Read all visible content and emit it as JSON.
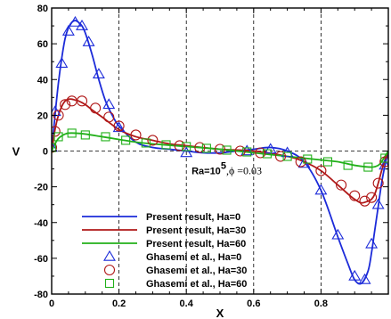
{
  "chart_data": {
    "type": "line",
    "xlabel": "X",
    "ylabel": "V",
    "xlim": [
      0,
      1
    ],
    "ylim": [
      -80,
      80
    ],
    "x_ticks": [
      {
        "value": 0,
        "label": "0"
      },
      {
        "value": 0.2,
        "label": "0.2"
      },
      {
        "value": 0.4,
        "label": "0.4"
      },
      {
        "value": 0.6,
        "label": "0.6"
      },
      {
        "value": 0.8,
        "label": "0.8"
      }
    ],
    "y_ticks": [
      {
        "value": 80,
        "label": "80"
      },
      {
        "value": 60,
        "label": "60"
      },
      {
        "value": 40,
        "label": "40"
      },
      {
        "value": 20,
        "label": "20"
      },
      {
        "value": 0,
        "label": "0"
      },
      {
        "value": -20,
        "label": "-20"
      },
      {
        "value": -40,
        "label": "-40"
      },
      {
        "value": -60,
        "label": "-60"
      },
      {
        "value": -80,
        "label": "-80"
      }
    ],
    "annotation": {
      "ra_prefix": "Ra=10",
      "ra_exponent": "5",
      "phi_text": ",ϕ =0.03",
      "x": 0.52,
      "y": -13
    },
    "legend_position": "lower-left",
    "series": [
      {
        "name": "Present result, Ha=0",
        "style": "line",
        "color": "#1c2bd9",
        "x": [
          0,
          0.01,
          0.02,
          0.03,
          0.04,
          0.05,
          0.06,
          0.07,
          0.08,
          0.09,
          0.1,
          0.12,
          0.14,
          0.16,
          0.18,
          0.2,
          0.25,
          0.3,
          0.35,
          0.4,
          0.45,
          0.5,
          0.55,
          0.6,
          0.65,
          0.7,
          0.75,
          0.8,
          0.85,
          0.88,
          0.9,
          0.92,
          0.94,
          0.95,
          0.96,
          0.97,
          0.98,
          0.99,
          1.0
        ],
        "y": [
          0,
          20,
          38,
          52,
          63,
          69,
          72,
          73,
          72,
          70,
          66,
          54,
          40,
          28,
          20,
          14,
          5,
          2,
          1,
          0,
          -1,
          -1,
          0,
          1,
          2,
          0,
          -6,
          -22,
          -48,
          -63,
          -72,
          -74,
          -67,
          -57,
          -44,
          -31,
          -18,
          -8,
          0
        ]
      },
      {
        "name": "Present result, Ha=30",
        "style": "line",
        "color": "#b01818",
        "x": [
          0,
          0.01,
          0.02,
          0.03,
          0.04,
          0.05,
          0.06,
          0.07,
          0.08,
          0.1,
          0.12,
          0.15,
          0.2,
          0.25,
          0.3,
          0.35,
          0.4,
          0.5,
          0.6,
          0.7,
          0.75,
          0.8,
          0.85,
          0.88,
          0.9,
          0.92,
          0.94,
          0.95,
          0.96,
          0.97,
          0.98,
          0.99,
          1.0
        ],
        "y": [
          0,
          12,
          20,
          25,
          28,
          29,
          29,
          28.5,
          28,
          26,
          23,
          19,
          12,
          8,
          6,
          4,
          3,
          1,
          0,
          -3,
          -6,
          -11,
          -19,
          -24,
          -27,
          -29,
          -28,
          -27,
          -24,
          -18,
          -11,
          -5,
          0
        ]
      },
      {
        "name": "Present result, Ha=60",
        "style": "line",
        "color": "#22b01a",
        "x": [
          0,
          0.01,
          0.02,
          0.03,
          0.04,
          0.05,
          0.07,
          0.1,
          0.15,
          0.2,
          0.25,
          0.3,
          0.4,
          0.5,
          0.6,
          0.7,
          0.8,
          0.85,
          0.9,
          0.95,
          0.97,
          0.98,
          0.99,
          1.0
        ],
        "y": [
          0,
          4,
          7,
          8.5,
          9.5,
          10,
          10,
          9.5,
          8,
          6.5,
          5,
          4,
          2.5,
          1,
          -1,
          -3,
          -5,
          -6,
          -8,
          -9,
          -8,
          -6,
          -3,
          0
        ]
      },
      {
        "name": "Ghasemi et al., Ha=0",
        "style": "triangle",
        "color": "#1c2bd9",
        "x": [
          0,
          0.01,
          0.03,
          0.05,
          0.07,
          0.09,
          0.11,
          0.14,
          0.17,
          0.2,
          0.4,
          0.58,
          0.65,
          0.7,
          0.75,
          0.8,
          0.85,
          0.9,
          0.93,
          0.95,
          0.97,
          0.99
        ],
        "y": [
          2,
          22,
          49,
          67,
          72,
          70,
          61,
          43,
          26,
          13,
          -1,
          0,
          1,
          -1,
          -7,
          -22,
          -47,
          -70,
          -72,
          -52,
          -30,
          -8
        ]
      },
      {
        "name": "Ghasemi et al., Ha=30",
        "style": "circle",
        "color": "#b01818",
        "x": [
          0,
          0.01,
          0.02,
          0.04,
          0.06,
          0.09,
          0.13,
          0.17,
          0.2,
          0.25,
          0.3,
          0.38,
          0.44,
          0.5,
          0.56,
          0.62,
          0.68,
          0.74,
          0.8,
          0.86,
          0.9,
          0.93,
          0.95,
          0.97,
          0.99
        ],
        "y": [
          2,
          11,
          20,
          26,
          28,
          28,
          24,
          19,
          14,
          9,
          6,
          3,
          2,
          1,
          0,
          -1,
          -3,
          -6,
          -11,
          -19,
          -25,
          -28,
          -26,
          -18,
          -6
        ]
      },
      {
        "name": "Ghasemi et al., Ha=60",
        "style": "square",
        "color": "#22b01a",
        "x": [
          0,
          0.02,
          0.06,
          0.1,
          0.16,
          0.22,
          0.28,
          0.34,
          0.4,
          0.46,
          0.52,
          0.58,
          0.64,
          0.7,
          0.76,
          0.82,
          0.88,
          0.94,
          0.99
        ],
        "y": [
          2,
          8,
          10,
          9,
          8,
          6,
          4.5,
          3.5,
          2.5,
          1.5,
          0.5,
          -0.5,
          -1.5,
          -3,
          -4.5,
          -6,
          -8,
          -9,
          -4
        ]
      }
    ]
  }
}
